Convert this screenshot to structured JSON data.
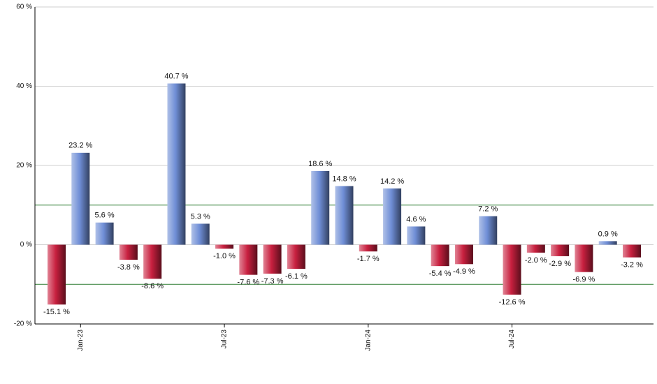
{
  "chart_data": {
    "type": "bar",
    "categories": [
      null,
      "Jan-23",
      null,
      null,
      null,
      null,
      null,
      "Jul-23",
      null,
      null,
      null,
      null,
      null,
      "Jan-24",
      null,
      null,
      null,
      null,
      null,
      "Jul-24",
      null,
      null,
      null,
      null,
      null
    ],
    "values": [
      -15.1,
      23.2,
      5.6,
      -3.8,
      -8.6,
      40.7,
      5.3,
      -1.0,
      -7.6,
      -7.3,
      -6.1,
      18.6,
      14.8,
      -1.7,
      14.2,
      4.6,
      -5.4,
      -4.9,
      7.2,
      -12.6,
      -2.0,
      -2.9,
      -6.9,
      0.9,
      -3.2
    ],
    "value_labels": [
      "-15.1 %",
      "23.2 %",
      "5.6 %",
      "-3.8 %",
      "-8.6 %",
      "40.7 %",
      "5.3 %",
      "-1.0 %",
      "-7.6 %",
      "-7.3 %",
      "-6.1 %",
      "18.6 %",
      "14.8 %",
      "-1.7 %",
      "14.2 %",
      "4.6 %",
      "-5.4 %",
      "-4.9 %",
      "7.2 %",
      "-12.6 %",
      "-2.0 %",
      "-2.9 %",
      "-6.9 %",
      "0.9 %",
      "-3.2 %"
    ],
    "positive_color": "#6f8ed6",
    "negative_color": "#c8203f",
    "ylim": [
      -20,
      60
    ],
    "yticks": [
      {
        "value": -20,
        "label": "-20 %"
      },
      {
        "value": 0,
        "label": "0 %"
      },
      {
        "value": 20,
        "label": "20 %"
      },
      {
        "value": 40,
        "label": "40 %"
      },
      {
        "value": 60,
        "label": "60 %"
      }
    ],
    "reference_lines": [
      10,
      -10
    ],
    "reference_color": "#2e7d32",
    "grid": true
  }
}
